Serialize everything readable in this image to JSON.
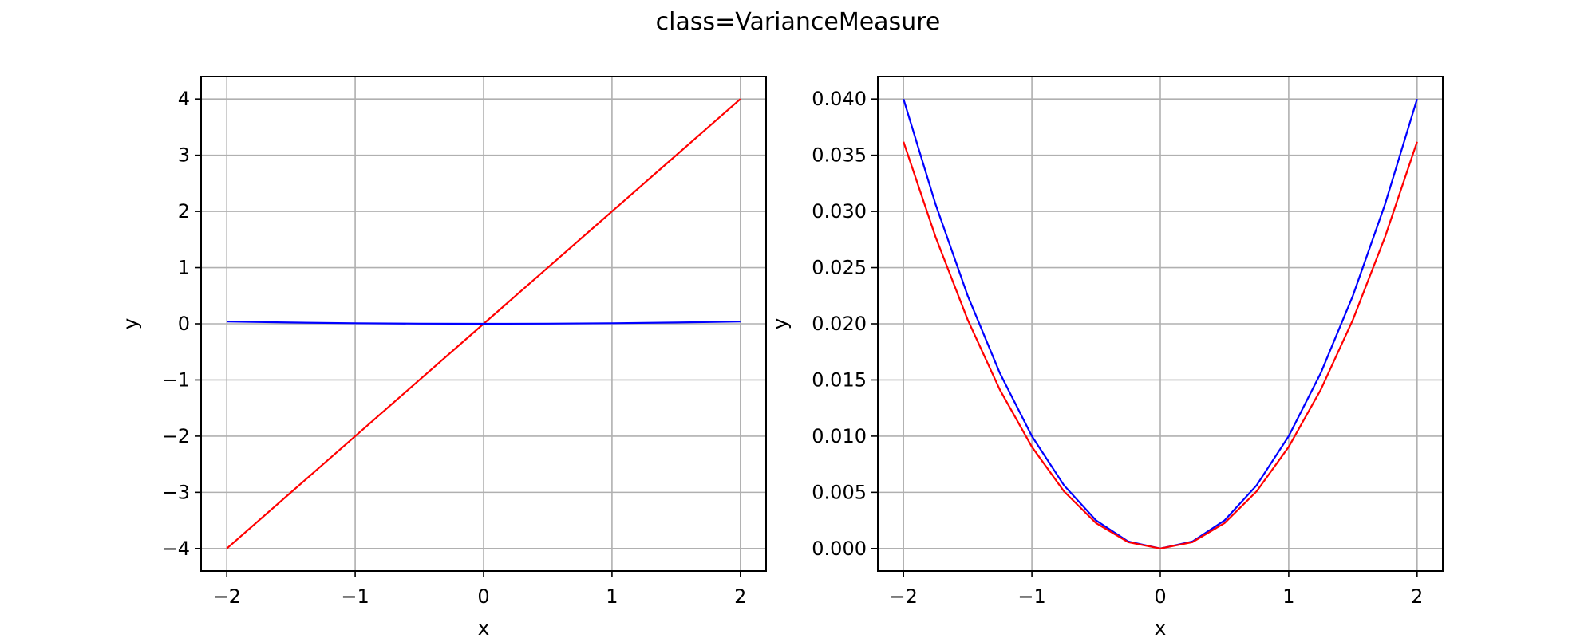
{
  "figure": {
    "title": "class=VarianceMeasure"
  },
  "chart_data": [
    {
      "type": "line",
      "title": "",
      "xlabel": "x",
      "ylabel": "y",
      "xlim": [
        -2.2,
        2.2
      ],
      "ylim": [
        -4.4,
        4.4
      ],
      "xticks": [
        -2,
        -1,
        0,
        1,
        2
      ],
      "xtick_labels": [
        "−2",
        "−1",
        "0",
        "1",
        "2"
      ],
      "yticks": [
        -4,
        -3,
        -2,
        -1,
        0,
        1,
        2,
        3,
        4
      ],
      "ytick_labels": [
        "−4",
        "−3",
        "−2",
        "−1",
        "0",
        "1",
        "2",
        "3",
        "4"
      ],
      "grid": true,
      "colors": {
        "line_red": "#ff0000",
        "line_blue": "#0000ff",
        "grid": "#b0b0b0"
      },
      "series": [
        {
          "color": "#ff0000",
          "x": [
            -2,
            -1.5,
            -1,
            -0.5,
            0,
            0.5,
            1,
            1.5,
            2
          ],
          "y": [
            -4,
            -3,
            -2,
            -1,
            0,
            1,
            2,
            3,
            4
          ]
        },
        {
          "color": "#0000ff",
          "x": [
            -2,
            -1.5,
            -1,
            -0.5,
            0,
            0.5,
            1,
            1.5,
            2
          ],
          "y": [
            0.04,
            0.0225,
            0.01,
            0.0025,
            0,
            0.0025,
            0.01,
            0.0225,
            0.04
          ]
        }
      ]
    },
    {
      "type": "line",
      "title": "",
      "xlabel": "x",
      "ylabel": "y",
      "xlim": [
        -2.2,
        2.2
      ],
      "ylim": [
        -0.002,
        0.042
      ],
      "xticks": [
        -2,
        -1,
        0,
        1,
        2
      ],
      "xtick_labels": [
        "−2",
        "−1",
        "0",
        "1",
        "2"
      ],
      "yticks": [
        0,
        0.005,
        0.01,
        0.015,
        0.02,
        0.025,
        0.03,
        0.035,
        0.04
      ],
      "ytick_labels": [
        "0.000",
        "0.005",
        "0.010",
        "0.015",
        "0.020",
        "0.025",
        "0.030",
        "0.035",
        "0.040"
      ],
      "grid": true,
      "colors": {
        "line_red": "#ff0000",
        "line_blue": "#0000ff",
        "grid": "#b0b0b0"
      },
      "series": [
        {
          "color": "#0000ff",
          "x": [
            -2,
            -1.75,
            -1.5,
            -1.25,
            -1,
            -0.75,
            -0.5,
            -0.25,
            0,
            0.25,
            0.5,
            0.75,
            1,
            1.25,
            1.5,
            1.75,
            2
          ],
          "y": [
            0.04,
            0.030625,
            0.0225,
            0.015625,
            0.01,
            0.005625,
            0.0025,
            0.000625,
            0,
            0.000625,
            0.0025,
            0.005625,
            0.01,
            0.015625,
            0.0225,
            0.030625,
            0.04
          ]
        },
        {
          "color": "#ff0000",
          "x": [
            -2,
            -1.75,
            -1.5,
            -1.25,
            -1,
            -0.75,
            -0.5,
            -0.25,
            0,
            0.25,
            0.5,
            0.75,
            1,
            1.25,
            1.5,
            1.75,
            2
          ],
          "y": [
            0.0362,
            0.02772,
            0.02036,
            0.01414,
            0.00905,
            0.00509,
            0.00226,
            0.00057,
            0,
            0.00057,
            0.00226,
            0.00509,
            0.00905,
            0.01414,
            0.02036,
            0.02772,
            0.0362
          ]
        }
      ]
    }
  ]
}
